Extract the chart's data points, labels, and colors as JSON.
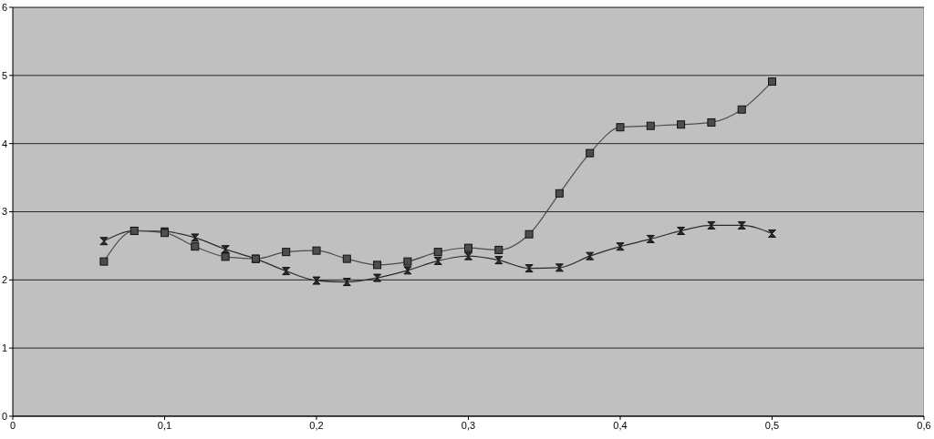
{
  "chart_data": {
    "type": "line",
    "x": [
      0.06,
      0.08,
      0.1,
      0.12,
      0.14,
      0.16,
      0.18,
      0.2,
      0.22,
      0.24,
      0.26,
      0.28,
      0.3,
      0.32,
      0.34,
      0.36,
      0.38,
      0.4,
      0.42,
      0.44,
      0.46,
      0.48,
      0.5
    ],
    "series": [
      {
        "color": "#4d4d4d",
        "marker": "square",
        "values": [
          2.27,
          2.72,
          2.69,
          2.49,
          2.34,
          2.31,
          2.41,
          2.43,
          2.31,
          2.22,
          2.27,
          2.41,
          2.47,
          2.44,
          2.67,
          3.27,
          3.86,
          4.24,
          4.26,
          4.28,
          4.31,
          4.5,
          4.91
        ]
      },
      {
        "color": "#2b2b2b",
        "marker": "diamond",
        "values": [
          2.57,
          2.72,
          2.71,
          2.62,
          2.45,
          2.31,
          2.13,
          1.99,
          1.97,
          2.03,
          2.14,
          2.28,
          2.35,
          2.29,
          2.17,
          2.18,
          2.35,
          2.49,
          2.6,
          2.72,
          2.8,
          2.8,
          2.68
        ]
      }
    ],
    "xlim": [
      0,
      0.6
    ],
    "xticks": [
      {
        "value": 0,
        "label": "0"
      },
      {
        "value": 0.1,
        "label": "0,1"
      },
      {
        "value": 0.2,
        "label": "0,2"
      },
      {
        "value": 0.3,
        "label": "0,3"
      },
      {
        "value": 0.4,
        "label": "0,4"
      },
      {
        "value": 0.5,
        "label": "0,5"
      },
      {
        "value": 0.6,
        "label": "0,6"
      }
    ],
    "ylim": [
      0,
      6
    ],
    "yticks": [
      0,
      1,
      2,
      3,
      4,
      5,
      6
    ],
    "grid": "y"
  }
}
